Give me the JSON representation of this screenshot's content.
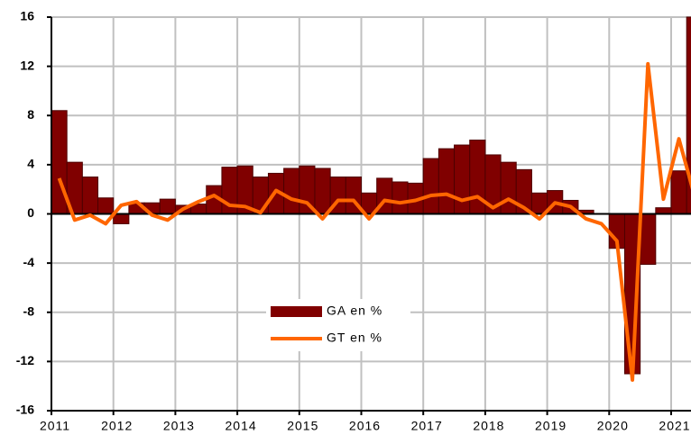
{
  "chart_data": {
    "type": "bar_line",
    "categories": [
      "2011",
      null,
      null,
      null,
      "2012",
      null,
      null,
      null,
      "2013",
      null,
      null,
      null,
      "2014",
      null,
      null,
      null,
      "2015",
      null,
      null,
      null,
      "2016",
      null,
      null,
      null,
      "2017",
      null,
      null,
      null,
      "2018",
      null,
      null,
      null,
      "2019",
      null,
      null,
      null,
      "2020",
      null,
      null,
      null,
      "2021",
      null
    ],
    "series": [
      {
        "name": "GA en %",
        "type": "bar",
        "color": "#800000",
        "values": [
          8.4,
          4.2,
          3.0,
          1.3,
          -0.8,
          0.9,
          0.9,
          1.2,
          0.7,
          0.8,
          2.3,
          3.8,
          3.9,
          3.0,
          3.3,
          3.7,
          3.9,
          3.7,
          3.0,
          3.0,
          1.7,
          2.9,
          2.6,
          2.5,
          4.5,
          5.3,
          5.6,
          6.0,
          4.8,
          4.2,
          3.6,
          1.7,
          1.9,
          1.1,
          0.3,
          0.0,
          -2.8,
          -13.0,
          -4.1,
          0.5,
          3.5,
          16.0
        ]
      },
      {
        "name": "GT en %",
        "type": "line",
        "color": "#ff6600",
        "values": [
          2.9,
          -0.5,
          -0.1,
          -0.8,
          0.7,
          1.0,
          -0.1,
          -0.5,
          0.4,
          1.0,
          1.5,
          0.7,
          0.6,
          0.1,
          1.9,
          1.2,
          0.9,
          -0.4,
          1.1,
          1.1,
          -0.4,
          1.1,
          0.9,
          1.1,
          1.5,
          1.6,
          1.1,
          1.4,
          0.5,
          1.2,
          0.5,
          -0.4,
          0.9,
          0.6,
          -0.4,
          -0.8,
          -2.2,
          -13.5,
          12.2,
          1.2,
          6.1,
          1.5
        ]
      }
    ],
    "ylim": [
      -16,
      16
    ],
    "yticks": [
      -16,
      -12,
      -8,
      -4,
      0,
      4,
      8,
      12,
      16
    ],
    "grid": true
  }
}
